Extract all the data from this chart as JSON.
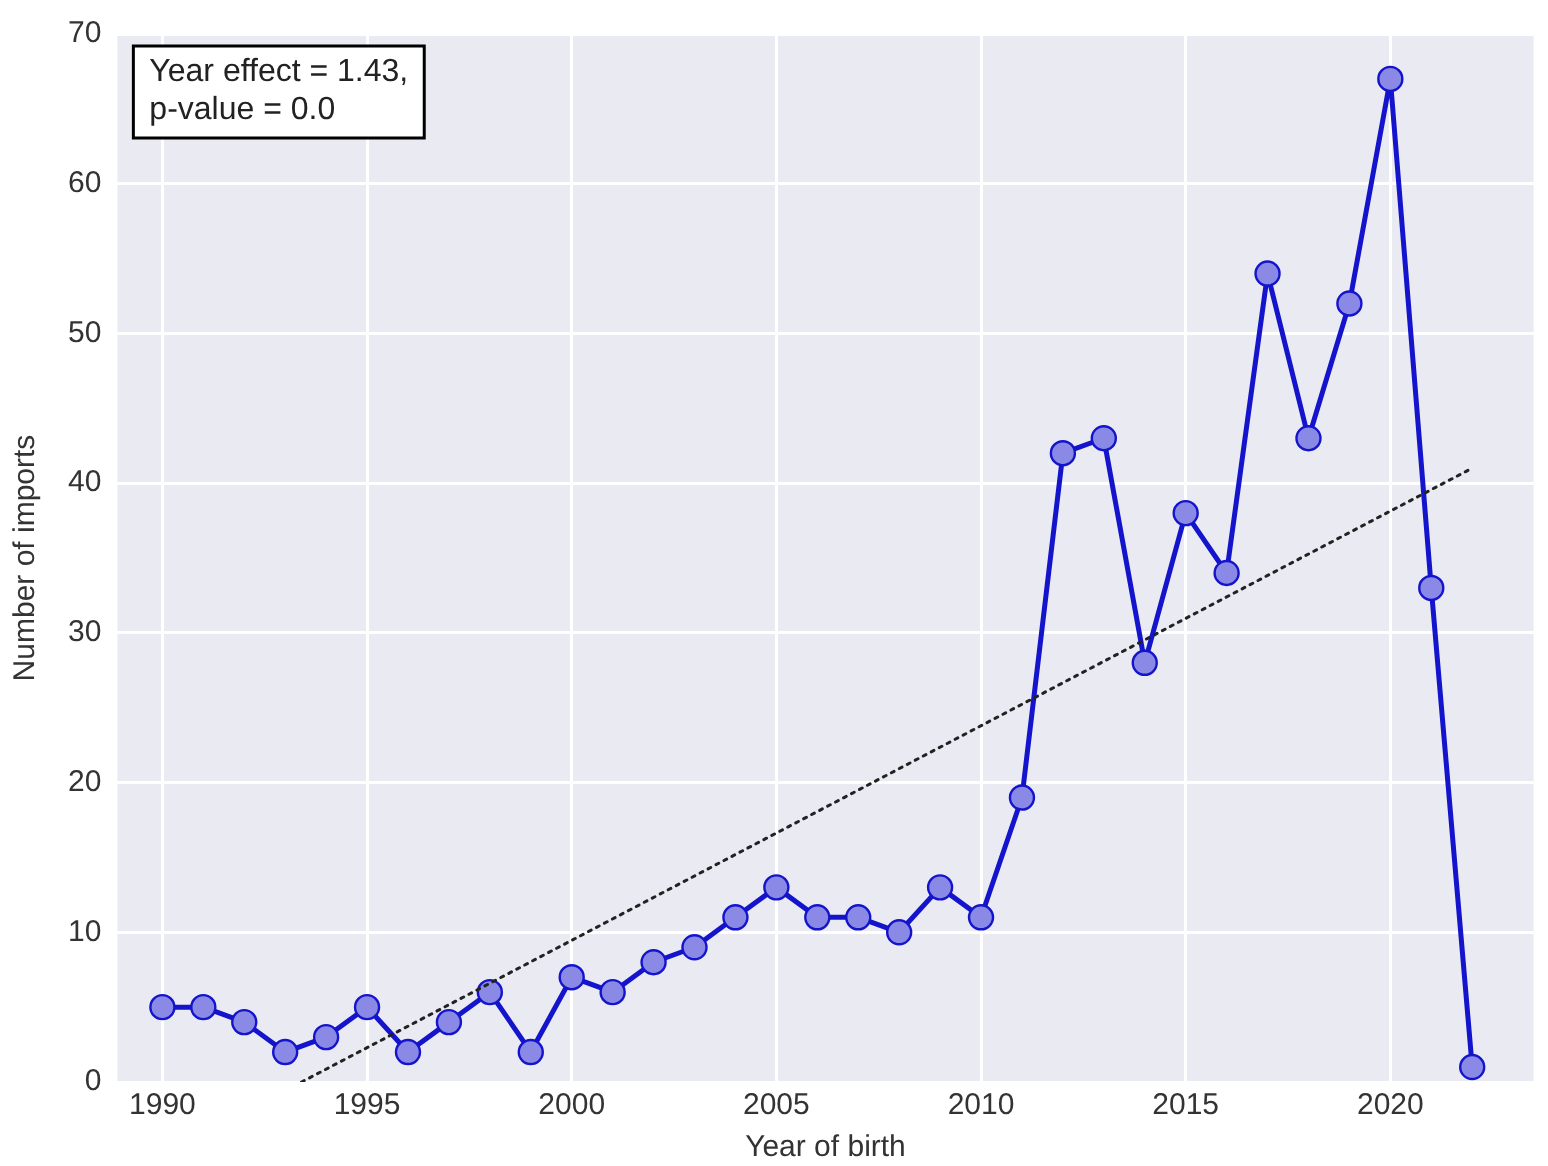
{
  "chart_data": {
    "type": "line",
    "xlabel": "Year of birth",
    "ylabel": "Number of imports",
    "annotations": [
      "Year effect = 1.43,\np-value = 0.0"
    ],
    "xlim": [
      1988.9,
      2023.5
    ],
    "xticks": [
      1990,
      1995,
      2000,
      2005,
      2010,
      2015,
      2020
    ],
    "ylim": [
      0,
      70
    ],
    "yticks": [
      0,
      10,
      20,
      30,
      40,
      50,
      60,
      70
    ],
    "grid": true,
    "series": [
      {
        "color": "#1414cc",
        "marker": "circle",
        "line_style": "solid",
        "x": [
          1990,
          1991,
          1992,
          1993,
          1994,
          1995,
          1996,
          1997,
          1998,
          1999,
          2000,
          2001,
          2002,
          2003,
          2004,
          2005,
          2006,
          2007,
          2008,
          2009,
          2010,
          2011,
          2012,
          2013,
          2014,
          2015,
          2016,
          2017,
          2018,
          2019,
          2020,
          2021,
          2022
        ],
        "values": [
          5,
          5,
          4,
          2,
          3,
          5,
          2,
          4,
          6,
          2,
          7,
          6,
          8,
          9,
          11,
          13,
          11,
          11,
          10,
          13,
          11,
          19,
          42,
          43,
          28,
          38,
          34,
          54,
          43,
          52,
          67,
          33,
          1
        ]
      },
      {
        "color": "#222222",
        "marker": "none",
        "line_style": "dotted",
        "x": [
          1993.4,
          2022
        ],
        "values": [
          0,
          41
        ]
      }
    ]
  }
}
